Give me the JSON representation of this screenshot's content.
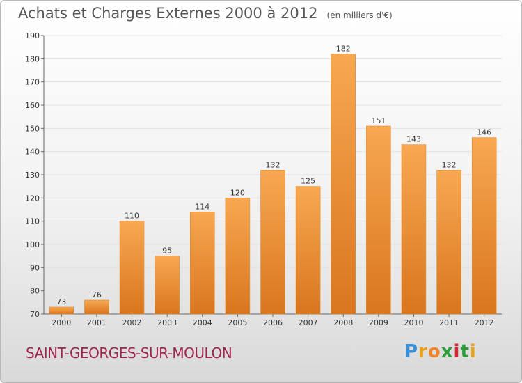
{
  "chart_data": {
    "type": "bar",
    "title": "Achats et Charges Externes 2000 à 2012",
    "subtitle": "(en milliers d'€)",
    "categories": [
      "2000",
      "2001",
      "2002",
      "2003",
      "2004",
      "2005",
      "2006",
      "2007",
      "2008",
      "2009",
      "2010",
      "2011",
      "2012"
    ],
    "values": [
      73,
      76,
      110,
      95,
      114,
      120,
      132,
      125,
      182,
      151,
      143,
      132,
      146
    ],
    "ylim": [
      70,
      190
    ],
    "yticks": [
      70,
      80,
      90,
      100,
      110,
      120,
      130,
      140,
      150,
      160,
      170,
      180,
      190
    ],
    "grid": true,
    "bar_color": "#f09a3e"
  },
  "commune": "SAINT-GEORGES-SUR-MOULON",
  "logo": {
    "letters": [
      "P",
      "r",
      "o",
      "x",
      "i",
      "t",
      "i"
    ],
    "colors": [
      "#3b8fd6",
      "#e8a21c",
      "#f0842c",
      "#2e9c3a",
      "#d7262c",
      "#2e9c3a",
      "#e8a21c"
    ]
  }
}
